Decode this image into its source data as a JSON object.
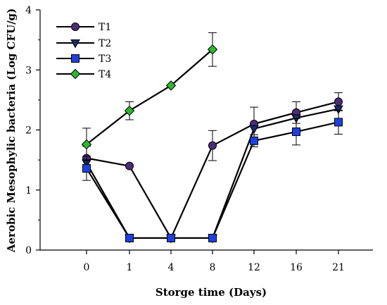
{
  "chart_data": {
    "type": "line",
    "title": "",
    "xlabel": "Storge time (Days)",
    "ylabel": "Aerobic Mesophylic bacteria (Log CFU/g)",
    "categories": [
      "0",
      "1",
      "4",
      "8",
      "12",
      "16",
      "21"
    ],
    "ylim": [
      0,
      4
    ],
    "yticks": [
      "0",
      "1",
      "2",
      "3",
      "4"
    ],
    "grid": false,
    "legend_position": "top-left",
    "series": [
      {
        "name": "T1",
        "marker": "circle",
        "color": "#4B2C7A",
        "values": [
          1.53,
          1.4,
          0.2,
          1.74,
          2.1,
          2.29,
          2.47
        ],
        "errors": [
          0.2,
          null,
          null,
          0.25,
          0.28,
          0.18,
          0.15
        ]
      },
      {
        "name": "T2",
        "marker": "triangle-down",
        "color": "#1A2B6B",
        "values": [
          1.45,
          0.2,
          0.2,
          0.2,
          2.02,
          2.2,
          2.35
        ],
        "errors": [
          null,
          null,
          null,
          null,
          null,
          null,
          null
        ]
      },
      {
        "name": "T3",
        "marker": "square",
        "color": "#1F3FE0",
        "values": [
          1.36,
          0.2,
          0.2,
          0.2,
          1.82,
          1.97,
          2.13
        ],
        "errors": [
          0.2,
          null,
          null,
          null,
          0.1,
          0.22,
          0.2
        ]
      },
      {
        "name": "T4",
        "marker": "diamond",
        "color": "#2DB82D",
        "values": [
          1.76,
          2.32,
          2.74,
          3.34,
          null,
          null,
          null
        ],
        "errors": [
          0.27,
          0.15,
          null,
          0.28,
          null,
          null,
          null
        ]
      }
    ]
  }
}
